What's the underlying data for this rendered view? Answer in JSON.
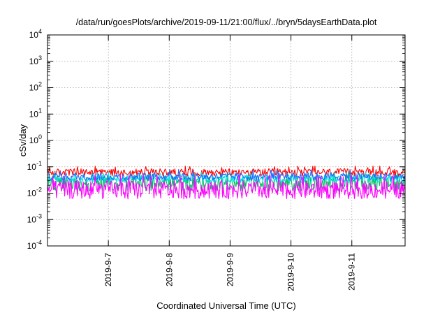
{
  "chart_data": {
    "type": "line",
    "title": "/data/run/goesPlots/archive/2019-09-11/21:00/flux/../bryn/5daysEarthData.plot",
    "xlabel": "Coordinated Universal Time (UTC)",
    "ylabel": "cSv/day",
    "y_scale": "log",
    "ylim": [
      0.0001,
      10000
    ],
    "y_ticks": [
      {
        "value": 0.0001,
        "base": "10",
        "exp": "-4"
      },
      {
        "value": 0.001,
        "base": "10",
        "exp": "-3"
      },
      {
        "value": 0.01,
        "base": "10",
        "exp": "-2"
      },
      {
        "value": 0.1,
        "base": "10",
        "exp": "-1"
      },
      {
        "value": 1,
        "base": "10",
        "exp": "0"
      },
      {
        "value": 10,
        "base": "10",
        "exp": "1"
      },
      {
        "value": 100,
        "base": "10",
        "exp": "2"
      },
      {
        "value": 1000,
        "base": "10",
        "exp": "3"
      },
      {
        "value": 10000,
        "base": "10",
        "exp": "4"
      }
    ],
    "xlim": [
      "2019-09-06 00:00",
      "2019-09-11 21:00"
    ],
    "x_ticks": [
      "2019-9-7",
      "2019-9-8",
      "2019-9-9",
      "2019-9-10",
      "2019-9-11"
    ],
    "grid": true,
    "series": [
      {
        "color": "#ff0000",
        "typical_range": [
          0.045,
          0.085
        ],
        "peak": 0.11
      },
      {
        "color": "#00c060",
        "typical_range": [
          0.012,
          0.045
        ],
        "peak": 0.06
      },
      {
        "color": "#1e6bff",
        "typical_range": [
          0.03,
          0.06
        ],
        "peak": 0.08
      },
      {
        "color": "#00e0e0",
        "typical_range": [
          0.025,
          0.05
        ],
        "peak": 0.065
      },
      {
        "color": "#ff00ff",
        "typical_range": [
          0.006,
          0.03
        ],
        "peak": 0.05
      }
    ]
  }
}
